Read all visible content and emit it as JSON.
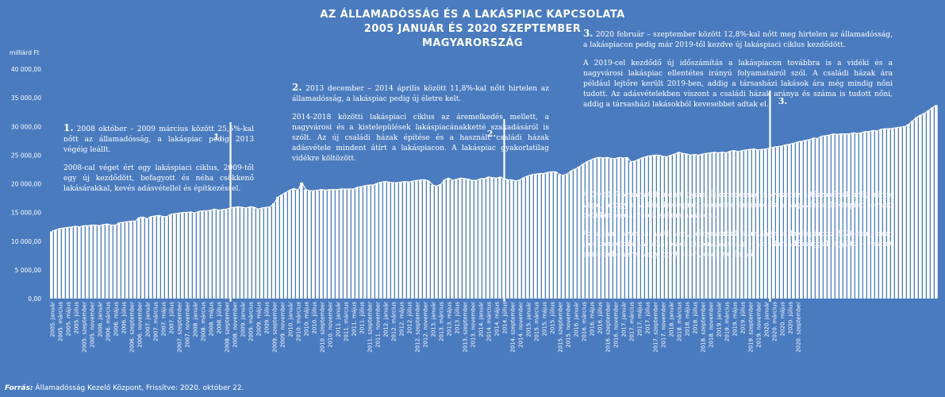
{
  "title": {
    "line1": "AZ ÁLLAMADÓSSÁG ÉS A LAKÁSPIAC KAPCSOLATA",
    "line2": "2005 JANUÁR ÉS 2020 SZEPTEMBER",
    "line3": "MAGYARORSZÁG"
  },
  "unit_label": "milliárd Ft",
  "source": {
    "label": "Forrás:",
    "text": " Államadósság Kezelő Központ, Frissítve: 2020. október 22."
  },
  "notes": {
    "n1": {
      "num": "1.",
      "p1": " 2008 október – 2009 március között 25,5%-kal nőtt az államadósság, a lakáspiac pedig 2013 végéig leállt.",
      "p2": "2008-cal véget ért egy lakáspiaci ciklus, 2009-től egy új kezdődött, befagyott és néha csökkenő lakásárakkal, kevés adásvétellel és építkezéssel."
    },
    "n2": {
      "num": "2.",
      "p1": " 2013 december – 2014 április között 11,8%-kal nőtt hirtelen az államadósság, a lakáspiac pedig új életre kelt.",
      "p2": "2014-2018 közötti lakáspiaci ciklus az áremelkedés mellett, a nagyvárosi és a kistelepülések lakáspiacánakketté szakadásáról is szólt. Az új családi házak építése és a használt családi házak adásvétele mindent átírt a lakáspiacon. A lakáspiac gyakorlatilag vidékre költözött."
    },
    "n3": {
      "num": "3.",
      "p1": " 2020 február – szeptember között 12,8%-kal nőtt meg hirtelen az államadósság, a lakáspiacon pedig már 2019-től kezdve új lakáspiaci ciklus kezdődött.",
      "p2": "A 2019-cel kezdődő új időszámítás a lakáspiacon továbbra is a vidéki és a nagyvárosi lakáspiac ellentétes irányú folyamatairól szól. A családi házak ára például lejtőre került 2019-ben, addig a társasházi lakások ára még mindig nőni tudott. Az adásvételekben viszont a családi házak aránya és száma is tudott nőni, addig a társasházi lakásokból kevesebbet adtak el.",
      "p3": "A 2020 februárjától indult gyors államadósság növekedés időszakának még nincs vége, ahogy a vidéki lakáspiac csökkenő árainak és a nagyvárosi lakáspiac tovább csökkenő adásvételi számainak sem.",
      "p4": "Az állam nyomás alatt van, kényszerből stimulálja a lakáspiacot 2020-ban, nem jótékonykodik. A lakáspiaci bizonytalanság – az államadóssággal együtt – viszont ennek ellenére, vagy pont ezért, csak nő és nő."
    }
  },
  "chart_data": {
    "type": "bar",
    "title": "AZ ÁLLAMADÓSSÁG ÉS A LAKÁSPIAC KAPCSOLATA",
    "ylabel": "milliárd Ft",
    "ylim": [
      0,
      40000
    ],
    "yticks": [
      "0,00",
      "5 000,00",
      "10 000,00",
      "15 000,00",
      "20 000,00",
      "25 000,00",
      "30 000,00",
      "35 000,00",
      "40 000,00"
    ],
    "grid": false,
    "start": "2005-01",
    "frequency": "monthly",
    "x_tick_labels": [
      "2005. január",
      "2005. március",
      "2005. május",
      "2005. július",
      "2005. szeptember",
      "2005. november",
      "2006. január",
      "2006. március",
      "2006. május",
      "2006. július",
      "2006. szeptember",
      "2006. november",
      "2007. január",
      "2007. március",
      "2007. május",
      "2007. július",
      "2007. szeptember",
      "2007. november",
      "2008. január",
      "2008. március",
      "2008. május",
      "2008. július",
      "2008. szeptember",
      "2008. november",
      "2009. január",
      "2009. március",
      "2009. május",
      "2009. július",
      "2009. szeptember",
      "2009. november",
      "2010. január",
      "2010. március",
      "2010. május",
      "2010. július",
      "2010. szeptember",
      "2010. november",
      "2011. január",
      "2011. március",
      "2011. május",
      "2011. július",
      "2011. szeptember",
      "2011. november",
      "2012. január",
      "2012. március",
      "2012. május",
      "2012. július",
      "2012. szeptember",
      "2012. november",
      "2013. január",
      "2013. március",
      "2013. május",
      "2013. július",
      "2013. szeptember",
      "2013. november",
      "2014. január",
      "2014. március",
      "2014. május",
      "2014. július",
      "2014. szeptember",
      "2014. november",
      "2015. január",
      "2015. március",
      "2015. május",
      "2015. július",
      "2015. szeptember",
      "2015. november",
      "2016. január",
      "2016. március",
      "2016. május",
      "2016. július",
      "2016. szeptember",
      "2016. november",
      "2017. január",
      "2017. március",
      "2017. május",
      "2017. július",
      "2017. szeptember",
      "2017. november",
      "2018. január",
      "2018. március",
      "2018. május",
      "2018. július",
      "2018. szeptember",
      "2018. november",
      "2019. január",
      "2019. március",
      "2019. május",
      "2019. július",
      "2019. szeptember",
      "2019. november",
      "2020. január",
      "2020. március",
      "2020. május",
      "2020. július",
      "2020. szeptember"
    ],
    "values": [
      11700,
      12000,
      12200,
      12300,
      12400,
      12500,
      12600,
      12500,
      12700,
      12700,
      12800,
      12800,
      12700,
      12900,
      13000,
      12800,
      12800,
      13200,
      13300,
      13400,
      13500,
      13500,
      14100,
      14200,
      13900,
      14300,
      14400,
      14500,
      14300,
      14300,
      14700,
      14800,
      14900,
      15000,
      15000,
      15100,
      14900,
      15200,
      15300,
      15300,
      15400,
      15600,
      15400,
      15500,
      15600,
      15800,
      15900,
      16000,
      15900,
      15800,
      16000,
      15900,
      15600,
      15800,
      15900,
      16000,
      16600,
      17700,
      18100,
      18500,
      18900,
      19200,
      18900,
      20200,
      19000,
      18800,
      18800,
      18900,
      19000,
      18900,
      19000,
      19000,
      19000,
      19100,
      19100,
      19100,
      19100,
      19400,
      19500,
      19700,
      19800,
      19800,
      20100,
      20300,
      20400,
      20300,
      20200,
      20200,
      20300,
      20400,
      20300,
      20500,
      20600,
      20700,
      20700,
      20500,
      19800,
      19600,
      19900,
      20700,
      21000,
      20600,
      20800,
      21000,
      20900,
      20800,
      20600,
      20600,
      20900,
      20900,
      21200,
      21100,
      21000,
      21200,
      20900,
      20700,
      20700,
      20500,
      20700,
      21100,
      21400,
      21600,
      21700,
      21800,
      21800,
      22000,
      22100,
      22100,
      21600,
      21500,
      21800,
      22300,
      22600,
      23000,
      23500,
      23900,
      24200,
      24500,
      24600,
      24500,
      24600,
      24400,
      24400,
      24600,
      24500,
      24600,
      23800,
      24000,
      24300,
      24600,
      24800,
      24900,
      25000,
      25000,
      24800,
      24700,
      25000,
      25200,
      25500,
      25300,
      25200,
      25000,
      25100,
      25000,
      25200,
      25300,
      25400,
      25500,
      25400,
      25500,
      25400,
      25700,
      25800,
      25600,
      25800,
      25900,
      26000,
      26100,
      25900,
      26000,
      26100,
      26200,
      26400,
      26500,
      26600,
      26800,
      26900,
      27100,
      27300,
      27400,
      27600,
      27700,
      28000,
      27900,
      28300,
      28400,
      28500,
      28700,
      28600,
      28700,
      28700,
      28700,
      28900,
      28800,
      28900,
      29100,
      29100,
      29300,
      29200,
      29500,
      29600,
      29600,
      29700,
      29800,
      29900,
      30000,
      30400,
      31000,
      31600,
      32000,
      32300,
      32800,
      33300,
      33700
    ]
  },
  "period_markers": [
    {
      "label": "1.",
      "month_index": 45
    },
    {
      "label": "2.",
      "month_index": 114
    },
    {
      "label": "3.",
      "month_index": 181
    }
  ]
}
